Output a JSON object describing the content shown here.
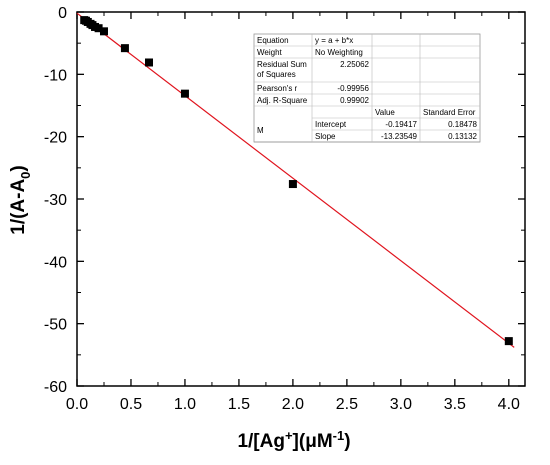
{
  "chart_data": {
    "type": "scatter",
    "xlabel": {
      "base": "1/[Ag",
      "sup1": "+",
      "mid": "](μM",
      "sup2": "-1",
      "end": ")"
    },
    "ylabel": {
      "base": "1/(A-A",
      "sub": "0",
      "end": ")"
    },
    "xlim": [
      0.0,
      4.15
    ],
    "ylim": [
      -60,
      0
    ],
    "x_ticks": [
      "0.0",
      "0.5",
      "1.0",
      "1.5",
      "2.0",
      "2.5",
      "3.0",
      "3.5",
      "4.0"
    ],
    "y_ticks": [
      "0",
      "-10",
      "-20",
      "-30",
      "-40",
      "-50",
      "-60"
    ],
    "grid": false,
    "points": [
      {
        "x": 0.067,
        "y": -1.3
      },
      {
        "x": 0.083,
        "y": -1.4
      },
      {
        "x": 0.1,
        "y": -1.6
      },
      {
        "x": 0.125,
        "y": -1.9
      },
      {
        "x": 0.143,
        "y": -2.1
      },
      {
        "x": 0.167,
        "y": -2.4
      },
      {
        "x": 0.2,
        "y": -2.6
      },
      {
        "x": 0.25,
        "y": -3.1
      },
      {
        "x": 0.444,
        "y": -5.8
      },
      {
        "x": 0.667,
        "y": -8.1
      },
      {
        "x": 1.0,
        "y": -13.1
      },
      {
        "x": 2.0,
        "y": -27.6
      },
      {
        "x": 4.0,
        "y": -52.8
      }
    ],
    "fit_line": {
      "intercept": -0.19417,
      "slope": -13.23549,
      "color": "#e0141e",
      "x_range": [
        0.0,
        4.05
      ]
    },
    "marker_color": "#000000",
    "fit_table": {
      "rows": [
        [
          "Equation",
          "y = a + b*x",
          "",
          ""
        ],
        [
          "Weight",
          "No Weighting",
          "",
          ""
        ],
        [
          "Residual Sum of Squares",
          "2.25062",
          "",
          ""
        ],
        [
          "Pearson's r",
          "-0.99956",
          "",
          ""
        ],
        [
          "Adj. R-Square",
          "0.99902",
          "",
          ""
        ]
      ],
      "param_header": [
        "",
        "",
        "Value",
        "Standard Error"
      ],
      "param_group": "M",
      "params": [
        [
          "Intercept",
          "-0.19417",
          "0.18478"
        ],
        [
          "Slope",
          "-13.23549",
          "0.13132"
        ]
      ]
    }
  }
}
